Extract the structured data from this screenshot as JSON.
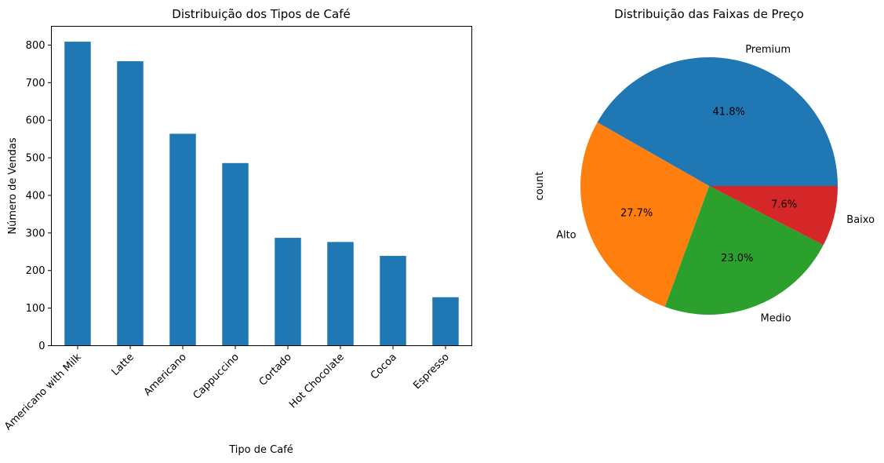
{
  "chart_data": [
    {
      "type": "bar",
      "title": "Distribuição dos Tipos de Café",
      "xlabel": "Tipo de Café",
      "ylabel": "Número de Vendas",
      "categories": [
        "Americano with Milk",
        "Latte",
        "Americano",
        "Cappuccino",
        "Cortado",
        "Hot Chocolate",
        "Cocoa",
        "Espresso"
      ],
      "values": [
        809,
        757,
        564,
        486,
        287,
        276,
        239,
        129
      ],
      "ylim": [
        0,
        850
      ],
      "yticks": [
        "0",
        "100",
        "200",
        "300",
        "400",
        "500",
        "600",
        "700",
        "800"
      ],
      "grid": false,
      "color": "#1f77b4"
    },
    {
      "type": "pie",
      "title": "Distribuição das Faixas de Preço",
      "ylabel": "count",
      "slices": [
        {
          "label": "Premium",
          "value": 41.8,
          "pct_label": "41.8%",
          "color": "#1f77b4"
        },
        {
          "label": "Alto",
          "value": 27.7,
          "pct_label": "27.7%",
          "color": "#ff7f0e"
        },
        {
          "label": "Medio",
          "value": 23.0,
          "pct_label": "23.0%",
          "color": "#2ca02c"
        },
        {
          "label": "Baixo",
          "value": 7.6,
          "pct_label": "7.6%",
          "color": "#d62728"
        }
      ]
    }
  ]
}
